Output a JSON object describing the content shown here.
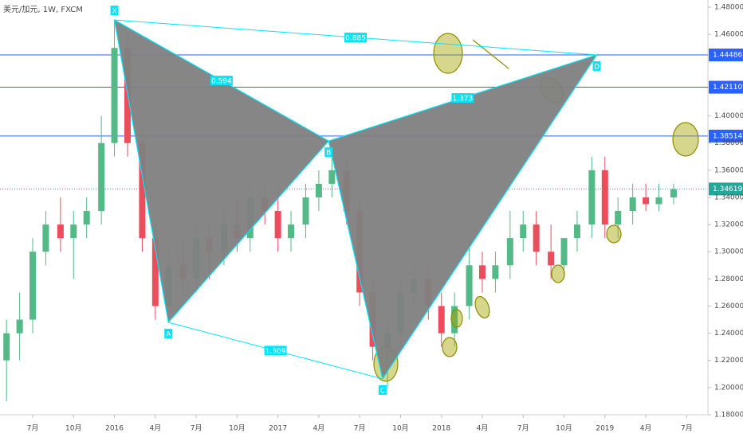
{
  "chart_data": {
    "type": "candlestick",
    "title": "美元/加元, 1W, FXCM",
    "xlim": [
      2015.3,
      2019.63
    ],
    "ylim": [
      1.18,
      1.4853
    ],
    "xticks": [
      {
        "value": 2015.5,
        "label": "7月"
      },
      {
        "value": 2015.75,
        "label": "10月"
      },
      2016,
      {
        "value": 2016.25,
        "label": "4月"
      },
      {
        "value": 2016.5,
        "label": "7月"
      },
      {
        "value": 2016.75,
        "label": "10月"
      },
      2017,
      {
        "value": 2017.25,
        "label": "4月"
      },
      {
        "value": 2017.5,
        "label": "7月"
      },
      {
        "value": 2017.75,
        "label": "10月"
      },
      2018,
      {
        "value": 2018.25,
        "label": "4月"
      },
      {
        "value": 2018.5,
        "label": "7月"
      },
      {
        "value": 2018.75,
        "label": "10月"
      },
      2019,
      {
        "value": 2019.25,
        "label": "4月"
      },
      {
        "value": 2019.5,
        "label": "7月"
      }
    ],
    "yticks": [
      {
        "value": 1.48,
        "label": "1.48000"
      },
      {
        "value": 1.46,
        "label": "1.46000"
      },
      {
        "value": 1.4,
        "label": "1.40000"
      },
      {
        "value": 1.38,
        "label": "1.38000"
      },
      {
        "value": 1.36,
        "label": "1.36000"
      },
      {
        "value": 1.34,
        "label": "1.34000"
      },
      {
        "value": 1.32,
        "label": "1.32000"
      },
      {
        "value": 1.3,
        "label": "1.30000"
      },
      {
        "value": 1.28,
        "label": "1.28000"
      },
      {
        "value": 1.26,
        "label": "1.26000"
      },
      {
        "value": 1.24,
        "label": "1.24000"
      },
      {
        "value": 1.22,
        "label": "1.22000"
      },
      {
        "value": 1.2,
        "label": "1.20000"
      },
      {
        "value": 1.18,
        "label": "1.18000"
      }
    ],
    "up_color": "#53b987",
    "down_color": "#eb4d5c",
    "x": [
      2015.34,
      2015.42,
      2015.5,
      2015.58,
      2015.67,
      2015.75,
      2015.83,
      2015.92,
      2016.0,
      2016.08,
      2016.17,
      2016.25,
      2016.33,
      2016.42,
      2016.5,
      2016.58,
      2016.67,
      2016.75,
      2016.83,
      2016.92,
      2017.0,
      2017.08,
      2017.17,
      2017.25,
      2017.33,
      2017.42,
      2017.5,
      2017.58,
      2017.67,
      2017.75,
      2017.83,
      2017.92,
      2018.0,
      2018.08,
      2018.17,
      2018.25,
      2018.33,
      2018.42,
      2018.5,
      2018.58,
      2018.67,
      2018.75,
      2018.83,
      2018.92,
      2019.0,
      2019.08,
      2019.17,
      2019.25,
      2019.33,
      2019.42
    ],
    "open": [
      1.22,
      1.24,
      1.25,
      1.3,
      1.32,
      1.31,
      1.32,
      1.33,
      1.38,
      1.45,
      1.38,
      1.31,
      1.26,
      1.29,
      1.28,
      1.31,
      1.3,
      1.32,
      1.31,
      1.34,
      1.33,
      1.31,
      1.32,
      1.34,
      1.35,
      1.36,
      1.33,
      1.27,
      1.23,
      1.24,
      1.27,
      1.28,
      1.26,
      1.24,
      1.26,
      1.29,
      1.28,
      1.29,
      1.31,
      1.32,
      1.3,
      1.29,
      1.31,
      1.32,
      1.36,
      1.32,
      1.33,
      1.34,
      1.335,
      1.34
    ],
    "high": [
      1.25,
      1.27,
      1.31,
      1.33,
      1.34,
      1.33,
      1.34,
      1.4,
      1.47,
      1.46,
      1.39,
      1.32,
      1.3,
      1.31,
      1.32,
      1.32,
      1.33,
      1.34,
      1.35,
      1.35,
      1.35,
      1.33,
      1.35,
      1.36,
      1.38,
      1.37,
      1.34,
      1.28,
      1.25,
      1.28,
      1.29,
      1.29,
      1.27,
      1.27,
      1.31,
      1.3,
      1.3,
      1.33,
      1.33,
      1.33,
      1.32,
      1.31,
      1.33,
      1.37,
      1.37,
      1.34,
      1.35,
      1.35,
      1.35,
      1.35
    ],
    "low": [
      1.19,
      1.22,
      1.24,
      1.29,
      1.3,
      1.28,
      1.31,
      1.32,
      1.37,
      1.37,
      1.3,
      1.25,
      1.25,
      1.27,
      1.27,
      1.28,
      1.29,
      1.3,
      1.3,
      1.32,
      1.3,
      1.3,
      1.31,
      1.33,
      1.34,
      1.32,
      1.26,
      1.22,
      1.2,
      1.23,
      1.26,
      1.25,
      1.23,
      1.23,
      1.25,
      1.27,
      1.27,
      1.28,
      1.3,
      1.29,
      1.28,
      1.28,
      1.3,
      1.31,
      1.31,
      1.31,
      1.32,
      1.33,
      1.33,
      1.335
    ],
    "close": [
      1.24,
      1.25,
      1.3,
      1.32,
      1.31,
      1.32,
      1.33,
      1.38,
      1.45,
      1.38,
      1.31,
      1.26,
      1.29,
      1.28,
      1.31,
      1.3,
      1.32,
      1.31,
      1.34,
      1.33,
      1.31,
      1.32,
      1.34,
      1.35,
      1.36,
      1.33,
      1.27,
      1.23,
      1.24,
      1.27,
      1.28,
      1.26,
      1.24,
      1.26,
      1.29,
      1.28,
      1.29,
      1.31,
      1.32,
      1.3,
      1.29,
      1.31,
      1.32,
      1.36,
      1.32,
      1.33,
      1.34,
      1.335,
      1.34,
      1.346
    ],
    "pattern": {
      "labels": [
        "X",
        "A",
        "B",
        "C",
        "D"
      ],
      "x": [
        2016.0,
        2016.33,
        2017.31,
        2017.64,
        2018.95
      ],
      "y": [
        1.4706,
        1.248,
        1.3815,
        1.2064,
        1.4449
      ],
      "color": "#00e5ff",
      "fill": "#7f7f7f"
    },
    "ratios": [
      0.594,
      1.373,
      0.885,
      1.309
    ],
    "levels": [
      1.44486,
      {
        "value": 1.4211,
        "label": "1.42110"
      },
      1.38514
    ],
    "level_color": "#2962ff",
    "last_price": 1.34619,
    "last_color": "#26a69a"
  }
}
